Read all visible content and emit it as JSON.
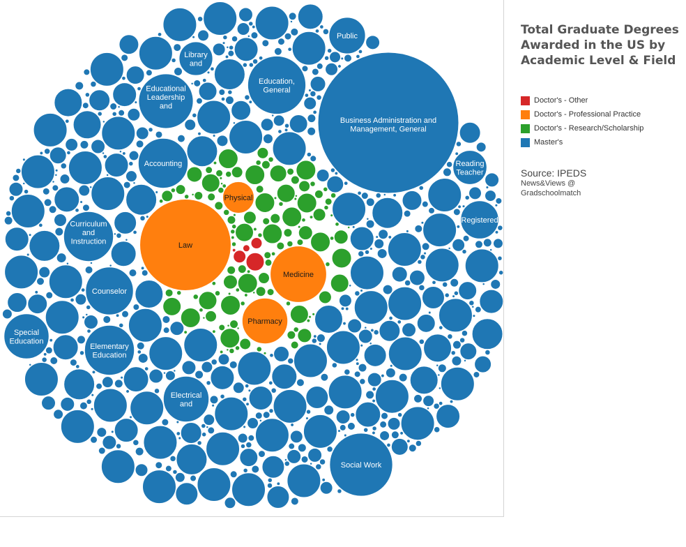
{
  "title_lines": [
    "Total Graduate Degrees",
    "Awarded in the US by",
    "Academic Level & Field"
  ],
  "source": {
    "label": "Source: IPEDS",
    "credit_line1": "News&Views @",
    "credit_line2": "Gradschoolmatch"
  },
  "legend": [
    {
      "label": "Doctor's  - Other",
      "color": "#d62728"
    },
    {
      "label": "Doctor's  - Professional Practice",
      "color": "#ff7f0e"
    },
    {
      "label": "Doctor's  - Research/Scholarship",
      "color": "#2ca02c"
    },
    {
      "label": "Master's",
      "color": "#1f77b4"
    }
  ],
  "chart_data": {
    "type": "packed-bubble",
    "title": "Total Graduate Degrees Awarded in the US by Academic Level & Field",
    "size_measure": "degrees awarded (relative)",
    "color_by": "Academic Level",
    "labeled_points": [
      {
        "field": "Business Administration and Management, General",
        "level": "Master's",
        "size": 100
      },
      {
        "field": "Law",
        "level": "Doctor's  - Professional Practice",
        "size": 42
      },
      {
        "field": "Social Work",
        "level": "Master's",
        "size": 20
      },
      {
        "field": "Education, General",
        "level": "Master's",
        "size": 17
      },
      {
        "field": "Medicine",
        "level": "Doctor's  - Professional Practice",
        "size": 16
      },
      {
        "field": "Educational Leadership and",
        "level": "Master's",
        "size": 15
      },
      {
        "field": "Accounting",
        "level": "Master's",
        "size": 12.5
      },
      {
        "field": "Curriculum and Instruction",
        "level": "Master's",
        "size": 12.5
      },
      {
        "field": "Elementary Education",
        "level": "Master's",
        "size": 12.5
      },
      {
        "field": "Counselor",
        "level": "Master's",
        "size": 11.5
      },
      {
        "field": "Pharmacy",
        "level": "Doctor's  - Professional Practice",
        "size": 10.5
      },
      {
        "field": "Electrical and",
        "level": "Master's",
        "size": 10.5
      },
      {
        "field": "Special Education",
        "level": "Master's",
        "size": 10.2
      },
      {
        "field": "Registered",
        "level": "Master's",
        "size": 7.3
      },
      {
        "field": "Public",
        "level": "Master's",
        "size": 6.7
      },
      {
        "field": "Reading Teacher",
        "level": "Master's",
        "size": 5.8
      },
      {
        "field": "Library and",
        "level": "Master's",
        "size": 5.7
      },
      {
        "field": "Physical",
        "level": "Doctor's  - Professional Practice",
        "size": 5.0
      }
    ]
  },
  "colors": {
    "masters": "#1f77b4",
    "professional": "#ff7f0e",
    "research": "#2ca02c",
    "other": "#d62728"
  }
}
